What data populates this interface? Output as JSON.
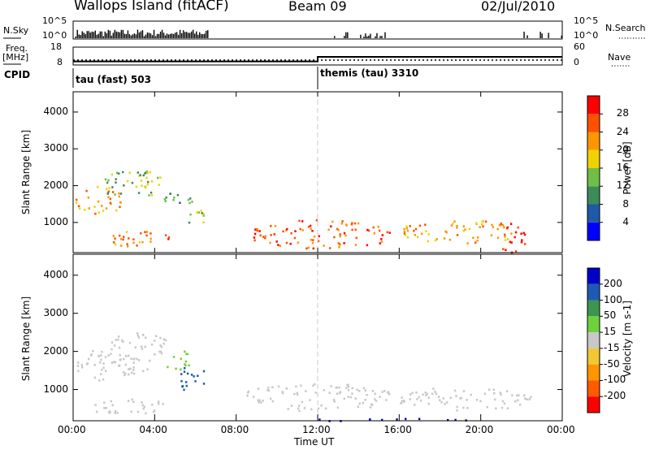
{
  "header": {
    "station": "Wallops Island (fitACF)",
    "beam": "Beam 09",
    "date": "02/Jul/2010"
  },
  "left_labels": {
    "nsky": "N.Sky",
    "freq": "Freq.",
    "freq_unit": "[MHz]",
    "cpid": "CPID"
  },
  "right_labels": {
    "nsearch": "N.Search",
    "nave": "Nave"
  },
  "cpid_segments": [
    {
      "label": "tau (fast) 503",
      "start_hour": 0
    },
    {
      "label": "themis (tau) 3310",
      "start_hour": 12
    }
  ],
  "colors": {
    "power": [
      "#0000ff",
      "#1e5aa8",
      "#3c8c5a",
      "#6fbe46",
      "#f0d200",
      "#ff9600",
      "#ff5000",
      "#ff0000"
    ],
    "velocity": [
      "#ff0000",
      "#ff5a00",
      "#ff9600",
      "#f0c832",
      "#c8c8c8",
      "#6ed23c",
      "#3c9650",
      "#1e5ab4",
      "#0000c8"
    ],
    "ground_scatter": "#c8c8c8",
    "dashed_line": "#c8c8c8"
  },
  "chart_data": [
    {
      "type": "line",
      "name": "N.Sky / N.Search",
      "left_ticks": [
        "10^5",
        "10^0"
      ],
      "right_ticks": [
        "10^5",
        "10^0"
      ],
      "x_range_hours": [
        0,
        24
      ],
      "nsky_active_hours": [
        [
          0.1,
          6.6
        ],
        [
          12.8,
          15.3
        ],
        [
          22.1,
          24
        ]
      ]
    },
    {
      "type": "line",
      "name": "Freq / Nave",
      "left_ticks": [
        "18",
        "8"
      ],
      "right_ticks": [
        "60",
        "0"
      ],
      "freq_ylim": [
        8,
        18
      ],
      "nave_ylim": [
        0,
        60
      ],
      "x": [
        0,
        12,
        12,
        24
      ],
      "nave": [
        10,
        10,
        27,
        27
      ],
      "freq": [
        10.5,
        10.5,
        10.5,
        10.5
      ]
    },
    {
      "type": "heatmap",
      "name": "Power",
      "ylabel": "Slant Range [km]",
      "y_ticks": [
        "1000",
        "2000",
        "3000",
        "4000"
      ],
      "ylim": [
        180,
        4550
      ],
      "xlim": [
        0,
        24
      ],
      "colorbar_label": "Power [dB]",
      "colorbar_ticks": [
        "4",
        "8",
        "12",
        "16",
        "20",
        "24",
        "28"
      ],
      "colorbar_range": [
        0,
        32
      ],
      "scatter_regions": [
        {
          "t": [
            0.1,
            2.3
          ],
          "r": [
            1200,
            2000
          ],
          "level": 22
        },
        {
          "t": [
            1.5,
            4.4
          ],
          "r": [
            1600,
            2500
          ],
          "level": 14
        },
        {
          "t": [
            4.4,
            6.0
          ],
          "r": [
            1500,
            2000
          ],
          "level": 10
        },
        {
          "t": [
            5.4,
            6.5
          ],
          "r": [
            900,
            1400
          ],
          "level": 16
        },
        {
          "t": [
            1.6,
            5.0
          ],
          "r": [
            300,
            800
          ],
          "level": 24
        },
        {
          "t": [
            8.8,
            15.5
          ],
          "r": [
            300,
            1100
          ],
          "level": 26
        },
        {
          "t": [
            16.2,
            22.0
          ],
          "r": [
            450,
            1100
          ],
          "level": 22
        },
        {
          "t": [
            20.8,
            22.2
          ],
          "r": [
            200,
            1000
          ],
          "level": 28
        }
      ]
    },
    {
      "type": "heatmap",
      "name": "Velocity",
      "ylabel": "Slant Range [km]",
      "y_ticks": [
        "1000",
        "2000",
        "3000",
        "4000"
      ],
      "ylim": [
        180,
        4550
      ],
      "xlim": [
        0,
        24
      ],
      "xlabel": "Time UT",
      "x_ticks": [
        "00:00",
        "04:00",
        "08:00",
        "12:00",
        "16:00",
        "20:00",
        "00:00"
      ],
      "colorbar_label": "Velocity [m s-1]",
      "colorbar_ticks": [
        "200",
        "100",
        "50",
        "15",
        "-15",
        "-50",
        "-100",
        "-200"
      ],
      "scatter_regions": [
        {
          "t": [
            0.1,
            3.0
          ],
          "r": [
            1200,
            2100
          ],
          "vel": 0
        },
        {
          "t": [
            1.8,
            4.5
          ],
          "r": [
            1500,
            2600
          ],
          "vel": 0
        },
        {
          "t": [
            4.5,
            5.7
          ],
          "r": [
            1500,
            2100
          ],
          "vel": 40
        },
        {
          "t": [
            5.2,
            6.4
          ],
          "r": [
            900,
            1700
          ],
          "vel": 150
        },
        {
          "t": [
            1.0,
            4.5
          ],
          "r": [
            300,
            800
          ],
          "vel": 0
        },
        {
          "t": [
            8.5,
            15.5
          ],
          "r": [
            450,
            1200
          ],
          "vel": 0
        },
        {
          "t": [
            16.0,
            22.5
          ],
          "r": [
            450,
            1100
          ],
          "vel": 0
        },
        {
          "t": [
            11.8,
            20.2
          ],
          "r": [
            180,
            260
          ],
          "vel": 220
        }
      ]
    }
  ]
}
